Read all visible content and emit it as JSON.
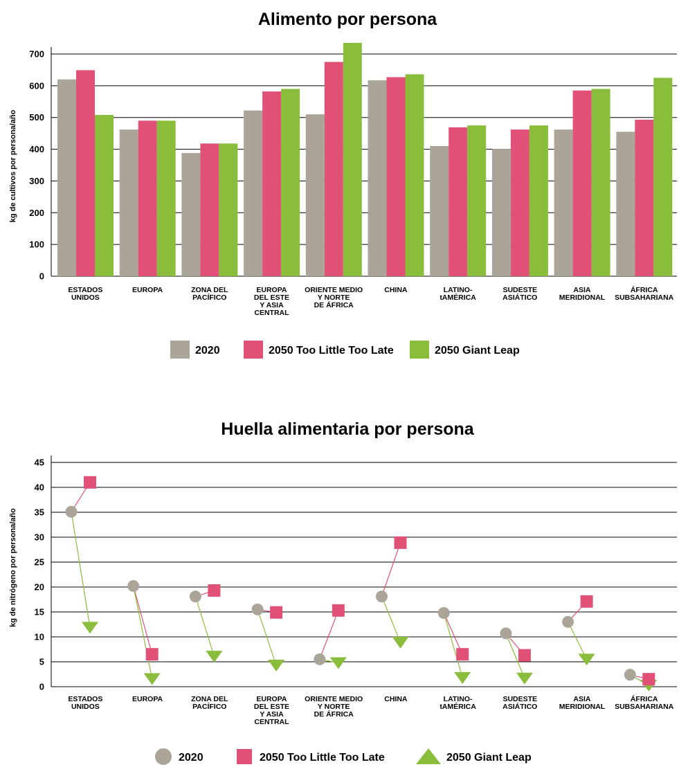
{
  "colors": {
    "s2020": "#aaa598",
    "too_little": "#e05077",
    "giant_leap": "#8abd3b",
    "grid": "#000000"
  },
  "chart_data": [
    {
      "type": "bar",
      "title": "Alimento por persona",
      "ylabel": "kg de cultivos por persona/año",
      "ylim": [
        0,
        700
      ],
      "yticks": [
        "0",
        "100",
        "200",
        "300",
        "400",
        "500",
        "600",
        "700"
      ],
      "grid": true,
      "legend_position": "bottom",
      "categories": [
        [
          "ESTADOS",
          "UNIDOS"
        ],
        [
          "EUROPA"
        ],
        [
          "ZONA DEL",
          "PACÍFICO"
        ],
        [
          "EUROPA",
          "DEL ESTE",
          "Y ASIA",
          "CENTRAL"
        ],
        [
          "ORIENTE MEDIO",
          "Y NORTE",
          "DE ÁFRICA"
        ],
        [
          "CHINA"
        ],
        [
          "LATINO-",
          "tAMÉRICA"
        ],
        [
          "SUDESTE",
          "ASIÁTICO"
        ],
        [
          "ASIA",
          "MERIDIONAL"
        ],
        [
          "ÁFRICA",
          "SUBSAHARIANA"
        ]
      ],
      "series": [
        {
          "name": "2020",
          "values": [
            620,
            462,
            388,
            522,
            510,
            617,
            410,
            401,
            462,
            455
          ]
        },
        {
          "name": "2050 Too Little Too Late",
          "values": [
            649,
            490,
            418,
            582,
            675,
            627,
            469,
            462,
            585,
            493
          ]
        },
        {
          "name": "2050 Giant Leap",
          "values": [
            508,
            490,
            418,
            590,
            735,
            636,
            475,
            475,
            590,
            625
          ]
        }
      ]
    },
    {
      "type": "scatter",
      "title": "Huella alimentaria por persona",
      "ylabel": "kg de nitrógeno por persona/año",
      "ylim": [
        0,
        45
      ],
      "yticks": [
        "0",
        "5",
        "10",
        "15",
        "20",
        "25",
        "30",
        "35",
        "40",
        "45"
      ],
      "grid": true,
      "legend_position": "bottom",
      "categories": [
        [
          "ESTADOS",
          "UNIDOS"
        ],
        [
          "EUROPA"
        ],
        [
          "ZONA DEL",
          "PACÍFICO"
        ],
        [
          "EUROPA",
          "DEL ESTE",
          "Y ASIA",
          "CENTRAL"
        ],
        [
          "ORIENTE MEDIO",
          "Y NORTE",
          "DE ÁFRICA"
        ],
        [
          "CHINA"
        ],
        [
          "LATINO-",
          "tAMÉRICA"
        ],
        [
          "SUDESTE",
          "ASIÁTICO"
        ],
        [
          "ASIA",
          "MERIDIONAL"
        ],
        [
          "ÁFRICA",
          "SUBSAHARIANA"
        ]
      ],
      "series": [
        {
          "name": "2020",
          "marker": "circle",
          "values": [
            35.1,
            20.2,
            18.1,
            15.5,
            5.5,
            18.1,
            14.8,
            10.7,
            13.0,
            2.4
          ]
        },
        {
          "name": "2050 Too Little Too Late",
          "marker": "square",
          "values": [
            41.0,
            6.5,
            19.3,
            14.9,
            15.3,
            28.9,
            6.5,
            6.3,
            17.1,
            1.5
          ]
        },
        {
          "name": "2050 Giant Leap",
          "marker": "triangle",
          "values": [
            11.9,
            1.6,
            6.1,
            4.3,
            4.8,
            8.9,
            1.8,
            1.7,
            5.5,
            0.3
          ]
        }
      ]
    }
  ]
}
